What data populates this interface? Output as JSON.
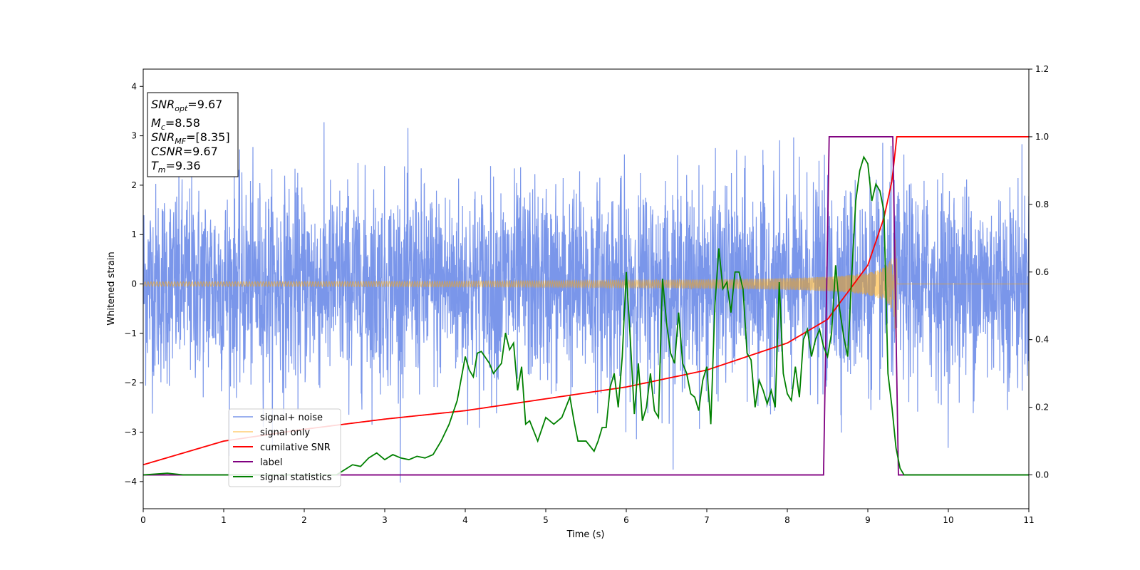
{
  "chart_data": {
    "type": "line",
    "xlabel": "Time (s)",
    "ylabel": "Whitened strain",
    "xlim": [
      0,
      11
    ],
    "ylim_left": [
      -4.55,
      4.35
    ],
    "ylim_right": [
      -0.1,
      1.2
    ],
    "x_ticks": [
      "0",
      "1",
      "2",
      "3",
      "4",
      "5",
      "6",
      "7",
      "8",
      "9",
      "10",
      "11"
    ],
    "y_ticks_left": [
      "4",
      "3",
      "2",
      "1",
      "0",
      "−1",
      "−2",
      "−3",
      "−4"
    ],
    "y_ticks_right": [
      "1.2",
      "1.0",
      "0.8",
      "0.6",
      "0.4",
      "0.2",
      "0.0"
    ],
    "grid": false,
    "legend_position": "lower-left",
    "annotation": {
      "snr_opt": {
        "base": "SNR",
        "sub": "opt",
        "value": "=9.67"
      },
      "mc": {
        "base": "M",
        "sub": "c",
        "value": "=8.58"
      },
      "snr_mf": {
        "base": "SNR",
        "sub": "MF",
        "value": "=[8.35]"
      },
      "csnr": {
        "base": "CSNR",
        "value": "=9.67"
      },
      "tm": {
        "base": "T",
        "sub": "m",
        "value": "=9.36"
      }
    },
    "series": [
      {
        "name": "signal+ noise",
        "color": "#4169e1",
        "axis": "left",
        "description_style": "noise",
        "std": 1.0,
        "x_range": [
          0,
          11
        ]
      },
      {
        "name": "signal only",
        "color": "#ffa500",
        "axis": "left",
        "merger_time": 9.36
      },
      {
        "name": "cumilative SNR",
        "color": "#ff0000",
        "axis": "right",
        "x": [
          0,
          1,
          2,
          3,
          4,
          5,
          6,
          7,
          8,
          8.5,
          9,
          9.2,
          9.3,
          9.36,
          11
        ],
        "y": [
          0.03,
          0.1,
          0.135,
          0.165,
          0.19,
          0.225,
          0.26,
          0.31,
          0.39,
          0.46,
          0.62,
          0.76,
          0.87,
          1.0,
          1.0
        ]
      },
      {
        "name": "label",
        "color": "#800080",
        "axis": "right",
        "x": [
          0,
          8.45,
          8.52,
          9.31,
          9.38,
          11
        ],
        "y": [
          0,
          0,
          1,
          1,
          0,
          0
        ]
      },
      {
        "name": "signal statistics",
        "color": "#008000",
        "axis": "right",
        "x": [
          0,
          0.3,
          0.5,
          1,
          2,
          2.4,
          2.6,
          2.7,
          2.8,
          2.9,
          3.0,
          3.1,
          3.2,
          3.3,
          3.4,
          3.5,
          3.6,
          3.7,
          3.8,
          3.9,
          4.0,
          4.05,
          4.1,
          4.15,
          4.2,
          4.3,
          4.35,
          4.45,
          4.5,
          4.55,
          4.6,
          4.65,
          4.7,
          4.75,
          4.8,
          4.9,
          5.0,
          5.1,
          5.15,
          5.2,
          5.3,
          5.35,
          5.4,
          5.5,
          5.6,
          5.65,
          5.7,
          5.75,
          5.8,
          5.85,
          5.9,
          5.95,
          6.0,
          6.05,
          6.1,
          6.15,
          6.2,
          6.25,
          6.3,
          6.35,
          6.4,
          6.45,
          6.5,
          6.55,
          6.6,
          6.65,
          6.7,
          6.75,
          6.8,
          6.85,
          6.9,
          6.95,
          7.0,
          7.05,
          7.1,
          7.15,
          7.2,
          7.25,
          7.3,
          7.35,
          7.4,
          7.45,
          7.5,
          7.55,
          7.6,
          7.65,
          7.7,
          7.75,
          7.8,
          7.85,
          7.9,
          7.95,
          8.0,
          8.05,
          8.1,
          8.15,
          8.2,
          8.25,
          8.3,
          8.35,
          8.4,
          8.45,
          8.5,
          8.55,
          8.6,
          8.65,
          8.7,
          8.75,
          8.8,
          8.85,
          8.9,
          8.95,
          9.0,
          9.05,
          9.1,
          9.15,
          9.2,
          9.25,
          9.3,
          9.35,
          9.4,
          9.45,
          9.5,
          9.6,
          11
        ],
        "y": [
          0.0,
          0.005,
          0.0,
          0.0,
          0.0,
          0.0,
          0.03,
          0.025,
          0.05,
          0.065,
          0.045,
          0.06,
          0.05,
          0.045,
          0.055,
          0.05,
          0.06,
          0.1,
          0.15,
          0.22,
          0.35,
          0.31,
          0.29,
          0.36,
          0.365,
          0.33,
          0.3,
          0.33,
          0.42,
          0.37,
          0.39,
          0.25,
          0.32,
          0.15,
          0.16,
          0.1,
          0.17,
          0.15,
          0.16,
          0.17,
          0.23,
          0.16,
          0.1,
          0.1,
          0.07,
          0.1,
          0.14,
          0.14,
          0.26,
          0.3,
          0.2,
          0.35,
          0.6,
          0.4,
          0.18,
          0.33,
          0.16,
          0.2,
          0.3,
          0.19,
          0.17,
          0.58,
          0.45,
          0.36,
          0.33,
          0.48,
          0.33,
          0.3,
          0.24,
          0.23,
          0.19,
          0.28,
          0.32,
          0.15,
          0.5,
          0.67,
          0.55,
          0.57,
          0.48,
          0.6,
          0.6,
          0.55,
          0.36,
          0.34,
          0.2,
          0.28,
          0.25,
          0.21,
          0.25,
          0.2,
          0.57,
          0.3,
          0.24,
          0.22,
          0.32,
          0.23,
          0.4,
          0.43,
          0.35,
          0.4,
          0.43,
          0.38,
          0.35,
          0.42,
          0.62,
          0.49,
          0.41,
          0.35,
          0.59,
          0.81,
          0.9,
          0.94,
          0.92,
          0.81,
          0.86,
          0.84,
          0.78,
          0.3,
          0.2,
          0.08,
          0.02,
          0.0,
          0.0,
          0.0,
          0.0
        ]
      }
    ]
  }
}
